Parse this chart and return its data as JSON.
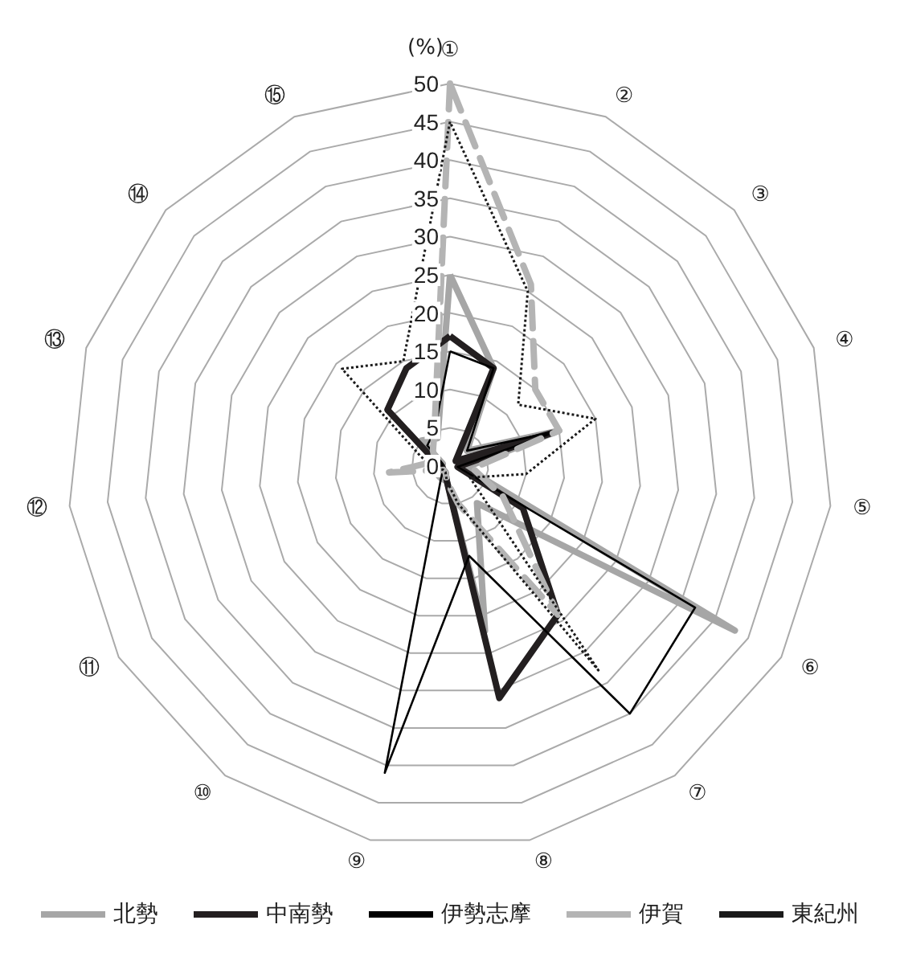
{
  "chart_data": {
    "type": "radar",
    "ylabel": "(%)",
    "categories": [
      "①",
      "②",
      "③",
      "④",
      "⑤",
      "⑥",
      "⑦",
      "⑧",
      "⑨",
      "⑩",
      "⑪",
      "⑫",
      "⑬",
      "⑭",
      "⑮"
    ],
    "ylim": [
      0,
      50
    ],
    "yticks": [
      0,
      5,
      10,
      15,
      20,
      25,
      30,
      35,
      40,
      45,
      50
    ],
    "grid": true,
    "legend": "bottom",
    "marker": "none",
    "series": [
      {
        "name": "北勢",
        "color": "#a6a6a6",
        "line_style": "solid",
        "values": [
          25,
          14,
          3,
          15,
          2,
          43,
          6,
          22,
          2,
          2,
          2,
          2,
          1,
          5,
          4
        ]
      },
      {
        "name": "中南勢",
        "color": "#231f20",
        "line_style": "solid",
        "values": [
          17,
          14,
          1,
          14,
          1,
          11,
          24,
          31,
          2,
          1,
          1,
          1,
          2,
          11,
          14
        ]
      },
      {
        "name": "伊勢志摩",
        "color": "#000000",
        "line_style": "solid",
        "values": [
          15,
          14,
          3,
          15,
          1,
          37,
          40,
          12,
          41,
          2,
          1,
          1,
          1,
          4,
          5
        ]
      },
      {
        "name": "伊賀",
        "color": "#b4b4b4",
        "line_style": "dashed",
        "values": [
          50,
          26,
          15,
          15,
          3,
          8,
          24,
          5,
          2,
          1,
          1,
          8,
          2,
          3,
          5
        ]
      },
      {
        "name": "東紀州",
        "color": "#1a1a1a",
        "line_style": "dotted",
        "values": [
          45,
          25,
          12,
          20,
          10,
          3,
          33,
          5,
          2,
          1,
          1,
          2,
          4,
          19,
          15
        ]
      }
    ]
  }
}
